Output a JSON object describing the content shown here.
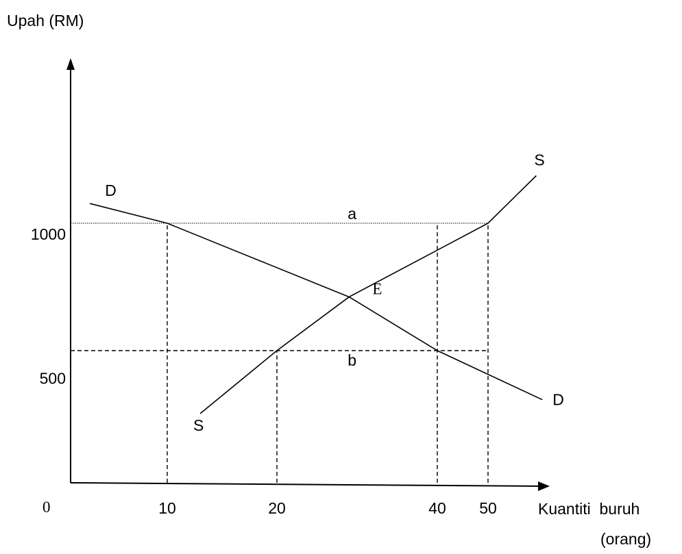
{
  "chart_data": {
    "type": "line",
    "ylabel": "Upah (RM)",
    "xlabel": "Kuantiti  buruh",
    "xlabel_unit": "(orang)",
    "origin_label": "0",
    "x_ticks": [
      "10",
      "20",
      "40",
      "50"
    ],
    "x_tick_values": [
      10,
      20,
      40,
      50
    ],
    "y_ticks": [
      "500",
      "1000"
    ],
    "y_tick_values": [
      500,
      1000
    ],
    "series": [
      {
        "name": "D",
        "start_label": "D",
        "end_label": "D",
        "points": [
          [
            2,
            1080
          ],
          [
            10,
            1000
          ],
          [
            29,
            753
          ],
          [
            40,
            573
          ],
          [
            59,
            360
          ]
        ]
      },
      {
        "name": "S",
        "start_label": "S",
        "end_label": "S",
        "points": [
          [
            13,
            300
          ],
          [
            20,
            573
          ],
          [
            29,
            753
          ],
          [
            50,
            1000
          ],
          [
            58,
            1193
          ]
        ]
      }
    ],
    "reference_lines": [
      {
        "axis": "y",
        "value": 1000,
        "from_x": 0,
        "to_x": 50,
        "style": "dotted"
      },
      {
        "axis": "y",
        "value": 573,
        "from_x": 0,
        "to_x": 50,
        "style": "dashed"
      },
      {
        "axis": "x",
        "value": 10,
        "from_y": 0,
        "to_y": 1000,
        "style": "dashed"
      },
      {
        "axis": "x",
        "value": 20,
        "from_y": 0,
        "to_y": 573,
        "style": "dashed"
      },
      {
        "axis": "x",
        "value": 40,
        "from_y": 0,
        "to_y": 1000,
        "style": "dashed"
      },
      {
        "axis": "x",
        "value": 50,
        "from_y": 0,
        "to_y": 1000,
        "style": "dashed"
      }
    ],
    "annotations": [
      {
        "text": "a",
        "x": 29,
        "y": 1000
      },
      {
        "text": "b",
        "x": 29,
        "y": 573
      },
      {
        "text": "E",
        "x": 32,
        "y": 753
      }
    ],
    "grid": false,
    "legend": "none"
  }
}
